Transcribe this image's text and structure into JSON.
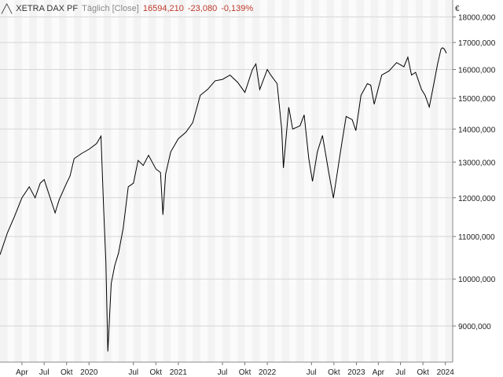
{
  "header": {
    "icon": "line-chart-icon",
    "title": "XETRA DAX PF",
    "mode": "Täglich [Close]",
    "last": "16594,210",
    "change": "-23,080",
    "change_pct": "-0,139%",
    "negative_color": "#c0392b"
  },
  "chart_data": {
    "type": "line",
    "title": "XETRA DAX PF",
    "xlabel": "",
    "ylabel": "",
    "y_unit": "€",
    "y_scale": "log",
    "ylim": [
      8300,
      18700
    ],
    "xlim": [
      "2019-01-01",
      "2024-01-31"
    ],
    "grid": true,
    "legend": "none",
    "line_color": "#000000",
    "y_ticks": [
      9000,
      10000,
      11000,
      12000,
      13000,
      14000,
      15000,
      16000,
      17000,
      18000
    ],
    "y_tick_labels": [
      "9000,000",
      "10000,000",
      "11000,000",
      "12000,000",
      "13000,000",
      "14000,000",
      "15000,000",
      "16000,000",
      "17000,000",
      "18000,000"
    ],
    "x_ticks": [
      "2019-04-01",
      "2019-07-01",
      "2019-10-01",
      "2020-01-01",
      "2020-07-01",
      "2020-10-01",
      "2021-01-01",
      "2021-07-01",
      "2021-10-01",
      "2022-01-01",
      "2022-07-01",
      "2022-10-01",
      "2023-01-01",
      "2023-04-01",
      "2023-07-01",
      "2023-10-01",
      "2024-01-01"
    ],
    "x_tick_labels": [
      "Apr",
      "Jul",
      "Okt",
      "2020",
      "Jul",
      "Okt",
      "2021",
      "Jul",
      "Okt",
      "2022",
      "Jul",
      "Okt",
      "2023",
      "Apr",
      "Jul",
      "Okt",
      "2024"
    ],
    "series": [
      {
        "points": [
          [
            "2019-01-01",
            10560
          ],
          [
            "2019-02-01",
            11100
          ],
          [
            "2019-03-01",
            11500
          ],
          [
            "2019-04-01",
            12000
          ],
          [
            "2019-05-01",
            12300
          ],
          [
            "2019-05-25",
            12000
          ],
          [
            "2019-06-15",
            12400
          ],
          [
            "2019-07-01",
            12500
          ],
          [
            "2019-08-15",
            11600
          ],
          [
            "2019-09-01",
            11950
          ],
          [
            "2019-10-01",
            12400
          ],
          [
            "2019-10-15",
            12600
          ],
          [
            "2019-11-01",
            13100
          ],
          [
            "2019-12-01",
            13250
          ],
          [
            "2020-01-01",
            13380
          ],
          [
            "2020-02-01",
            13550
          ],
          [
            "2020-02-19",
            13780
          ],
          [
            "2020-03-01",
            11700
          ],
          [
            "2020-03-10",
            10400
          ],
          [
            "2020-03-18",
            8500
          ],
          [
            "2020-04-01",
            9900
          ],
          [
            "2020-04-15",
            10300
          ],
          [
            "2020-05-01",
            10600
          ],
          [
            "2020-05-20",
            11200
          ],
          [
            "2020-06-10",
            12300
          ],
          [
            "2020-07-01",
            12400
          ],
          [
            "2020-07-20",
            13050
          ],
          [
            "2020-08-10",
            12900
          ],
          [
            "2020-09-01",
            13200
          ],
          [
            "2020-10-01",
            12800
          ],
          [
            "2020-10-20",
            12700
          ],
          [
            "2020-10-30",
            11550
          ],
          [
            "2020-11-10",
            12650
          ],
          [
            "2020-12-01",
            13300
          ],
          [
            "2021-01-01",
            13700
          ],
          [
            "2021-02-01",
            13900
          ],
          [
            "2021-03-01",
            14200
          ],
          [
            "2021-04-01",
            15100
          ],
          [
            "2021-05-01",
            15300
          ],
          [
            "2021-06-01",
            15600
          ],
          [
            "2021-07-01",
            15650
          ],
          [
            "2021-08-01",
            15800
          ],
          [
            "2021-09-01",
            15550
          ],
          [
            "2021-10-01",
            15200
          ],
          [
            "2021-11-01",
            16000
          ],
          [
            "2021-11-15",
            16200
          ],
          [
            "2021-12-01",
            15300
          ],
          [
            "2022-01-01",
            16000
          ],
          [
            "2022-01-15",
            15800
          ],
          [
            "2022-02-10",
            15500
          ],
          [
            "2022-03-01",
            14000
          ],
          [
            "2022-03-08",
            12830
          ],
          [
            "2022-03-30",
            14700
          ],
          [
            "2022-04-15",
            14000
          ],
          [
            "2022-05-15",
            14100
          ],
          [
            "2022-06-01",
            14450
          ],
          [
            "2022-06-20",
            13100
          ],
          [
            "2022-07-05",
            12450
          ],
          [
            "2022-07-25",
            13300
          ],
          [
            "2022-08-15",
            13800
          ],
          [
            "2022-09-10",
            12700
          ],
          [
            "2022-09-29",
            11990
          ],
          [
            "2022-10-15",
            12700
          ],
          [
            "2022-11-01",
            13500
          ],
          [
            "2022-11-20",
            14400
          ],
          [
            "2022-12-15",
            14300
          ],
          [
            "2022-12-30",
            13950
          ],
          [
            "2023-01-20",
            15100
          ],
          [
            "2023-02-15",
            15500
          ],
          [
            "2023-03-01",
            15450
          ],
          [
            "2023-03-15",
            14800
          ],
          [
            "2023-04-15",
            15800
          ],
          [
            "2023-05-15",
            15950
          ],
          [
            "2023-06-15",
            16250
          ],
          [
            "2023-07-15",
            16100
          ],
          [
            "2023-07-31",
            16450
          ],
          [
            "2023-08-15",
            15800
          ],
          [
            "2023-09-01",
            15900
          ],
          [
            "2023-09-25",
            15300
          ],
          [
            "2023-10-10",
            15100
          ],
          [
            "2023-10-27",
            14710
          ],
          [
            "2023-11-10",
            15300
          ],
          [
            "2023-11-30",
            16200
          ],
          [
            "2023-12-14",
            16750
          ],
          [
            "2023-12-20",
            16800
          ],
          [
            "2023-12-28",
            16751
          ],
          [
            "2024-01-04",
            16617
          ],
          [
            "2024-01-05",
            16594
          ]
        ]
      }
    ]
  }
}
